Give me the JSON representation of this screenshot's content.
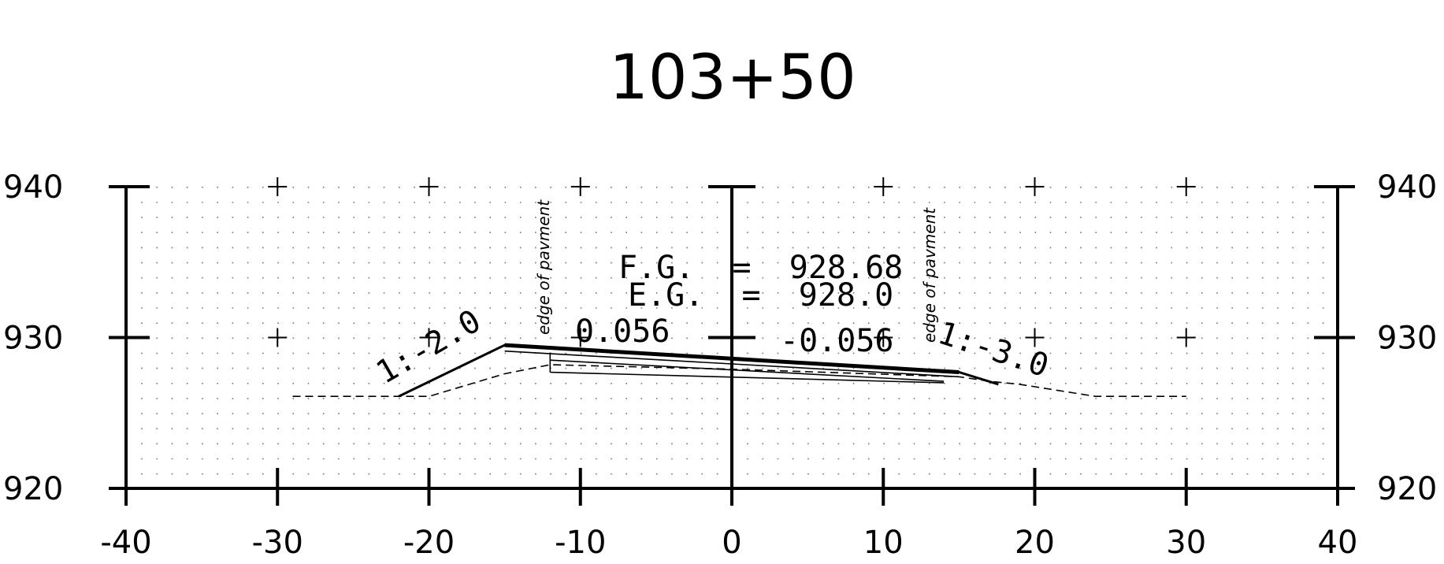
{
  "title": "103+50",
  "x_ticks": [
    "-40",
    "-30",
    "-20",
    "-10",
    "0",
    "10",
    "20",
    "30",
    "40"
  ],
  "y_ticks_left": [
    "940",
    "930",
    "920"
  ],
  "y_ticks_right": [
    "940",
    "930",
    "920"
  ],
  "annotations": {
    "finished_grade": "F.G.  =  928.68",
    "existing_grade": "E.G.  =  928.0",
    "left_crossfall": "0.056",
    "right_crossfall": "-0.056",
    "left_slope": "1:-2.0",
    "right_slope": "1:-3.0",
    "left_edge": "edge of pavment",
    "right_edge": "edge of pavment"
  },
  "chart_data": {
    "type": "line",
    "title": "103+50",
    "xlabel": "",
    "ylabel": "",
    "xlim": [
      -40,
      40
    ],
    "ylim": [
      920,
      940
    ],
    "grid": true,
    "series": [
      {
        "style": "solid",
        "x": [
          -22,
          -15,
          15,
          17.6
        ],
        "y": [
          926.1,
          929.5,
          927.7,
          926.9
        ]
      },
      {
        "style": "dashed",
        "x": [
          -29,
          -20,
          -15,
          -12,
          0,
          15,
          17,
          19,
          24,
          30
        ],
        "y": [
          926.1,
          926.1,
          927.6,
          928.2,
          927.9,
          927.4,
          927.1,
          926.9,
          926.1,
          926.1
        ]
      }
    ]
  }
}
